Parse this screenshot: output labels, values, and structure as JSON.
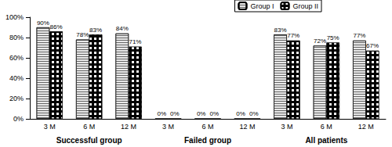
{
  "chart_data": {
    "type": "bar",
    "categories": [
      "3 M",
      "6 M",
      "12 M",
      "3 M",
      "6 M",
      "12 M",
      "3 M",
      "6 M",
      "12 M"
    ],
    "groups": [
      "Successful group",
      "Failed group",
      "All patients"
    ],
    "series": [
      {
        "name": "Group I",
        "color": "#e8e8e8",
        "values": [
          90,
          78,
          84,
          0,
          0,
          0,
          83,
          72,
          77
        ],
        "value_labels": [
          "90%",
          "78%",
          "84%",
          "0%",
          "0%",
          "0%",
          "83%",
          "72%",
          "77%"
        ]
      },
      {
        "name": "Group II",
        "color": "#000000",
        "values": [
          86,
          83,
          71,
          0,
          0,
          0,
          77,
          75,
          67
        ],
        "value_labels": [
          "86%",
          "83%",
          "71%",
          "0%",
          "0%",
          "0%",
          "77%",
          "75%",
          "67%"
        ]
      }
    ],
    "ylim": [
      0,
      100
    ],
    "yticks": [
      {
        "value": 0,
        "label": "0%"
      },
      {
        "value": 20,
        "label": "20%"
      },
      {
        "value": 40,
        "label": "40%"
      },
      {
        "value": 60,
        "label": "60%"
      },
      {
        "value": 80,
        "label": "80%"
      },
      {
        "value": 100,
        "label": "100%"
      }
    ],
    "grid": false,
    "legend": "top-right",
    "data_labels": true
  }
}
